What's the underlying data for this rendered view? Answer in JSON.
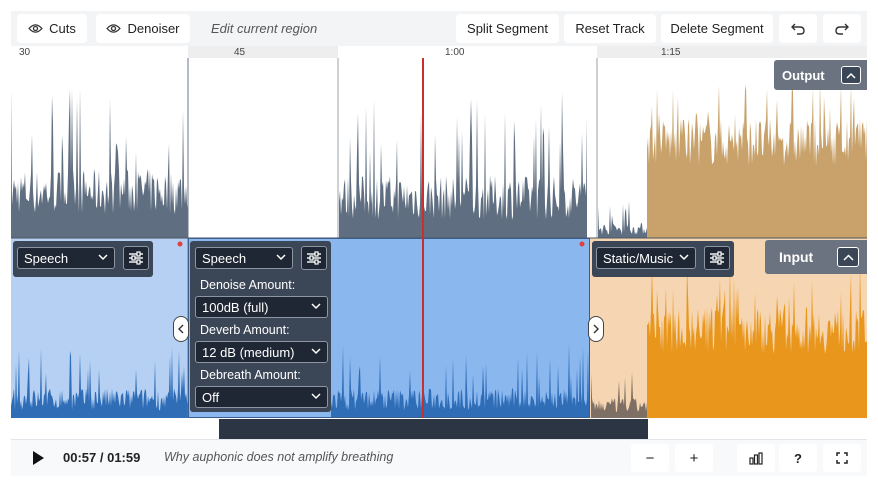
{
  "toolbar": {
    "cuts_label": "Cuts",
    "denoiser_label": "Denoiser",
    "edit_hint": "Edit current region",
    "split_label": "Split Segment",
    "reset_label": "Reset Track",
    "delete_label": "Delete Segment",
    "undo_icon": "undo-icon",
    "redo_icon": "redo-icon"
  },
  "ruler": {
    "ticks": [
      "30",
      "45",
      "1:00",
      "1:15"
    ]
  },
  "tracks": {
    "output_label": "Output",
    "input_label": "Input"
  },
  "segments": [
    {
      "type": "Speech"
    },
    {
      "type": "Speech",
      "denoise_label": "Denoise Amount:",
      "denoise_value": "100dB (full)",
      "deverb_label": "Deverb Amount:",
      "deverb_value": "12 dB (medium)",
      "debreath_label": "Debreath Amount:",
      "debreath_value": "Off"
    },
    {
      "type": "Static/Music"
    }
  ],
  "playback": {
    "time": "00:57 / 01:59",
    "help_link": "Why auphonic does not amplify breathing",
    "zoom_out": "−",
    "zoom_in": "+",
    "help": "?"
  },
  "colors": {
    "output_speech": "#5f6e80",
    "output_music": "#c8a26a",
    "input_speech_bg": "#b5d0f2",
    "input_active_bg": "#8ab7ee",
    "input_wave": "#2f6db7",
    "input_music_bg": "#f6d6b2",
    "input_music_wave": "#e8971c",
    "playhead": "#c8302e"
  }
}
